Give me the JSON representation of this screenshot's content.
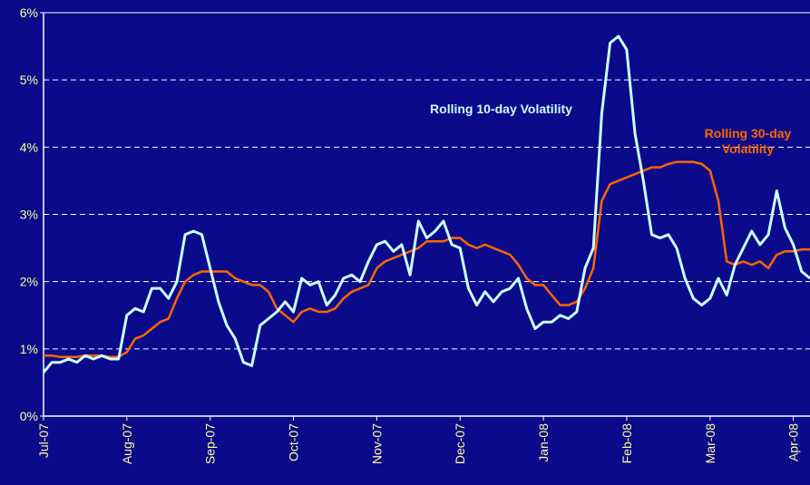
{
  "chart_data": {
    "type": "line",
    "categories": [
      "Jul-07",
      null,
      null,
      null,
      null,
      null,
      null,
      null,
      null,
      null,
      "Aug-07",
      null,
      null,
      null,
      null,
      null,
      null,
      null,
      null,
      null,
      "Sep-07",
      null,
      null,
      null,
      null,
      null,
      null,
      null,
      null,
      null,
      "Oct-07",
      null,
      null,
      null,
      null,
      null,
      null,
      null,
      null,
      null,
      "Nov-07",
      null,
      null,
      null,
      null,
      null,
      null,
      null,
      null,
      null,
      "Dec-07",
      null,
      null,
      null,
      null,
      null,
      null,
      null,
      null,
      null,
      "Jan-08",
      null,
      null,
      null,
      null,
      null,
      null,
      null,
      null,
      null,
      "Feb-08",
      null,
      null,
      null,
      null,
      null,
      null,
      null,
      null,
      null,
      "Mar-08",
      null,
      null,
      null,
      null,
      null,
      null,
      null,
      null,
      null,
      "Apr-08",
      null,
      null
    ],
    "series": [
      {
        "name": "Rolling 10-day Volatility",
        "color": "#ccffff",
        "values": [
          0.65,
          0.8,
          0.8,
          0.85,
          0.8,
          0.9,
          0.85,
          0.9,
          0.85,
          0.85,
          1.5,
          1.6,
          1.55,
          1.9,
          1.9,
          1.75,
          2.0,
          2.7,
          2.75,
          2.7,
          2.2,
          1.7,
          1.35,
          1.15,
          0.8,
          0.75,
          1.35,
          1.45,
          1.55,
          1.7,
          1.55,
          2.05,
          1.95,
          2.0,
          1.65,
          1.8,
          2.05,
          2.1,
          2.0,
          2.3,
          2.55,
          2.6,
          2.45,
          2.55,
          2.1,
          2.9,
          2.65,
          2.75,
          2.9,
          2.55,
          2.5,
          1.9,
          1.65,
          1.85,
          1.7,
          1.85,
          1.9,
          2.05,
          1.6,
          1.3,
          1.4,
          1.4,
          1.5,
          1.45,
          1.55,
          2.2,
          2.5,
          4.5,
          5.55,
          5.65,
          5.45,
          4.2,
          3.5,
          2.7,
          2.65,
          2.7,
          2.5,
          2.05,
          1.75,
          1.65,
          1.75,
          2.05,
          1.8,
          2.25,
          2.5,
          2.75,
          2.55,
          2.7,
          3.35,
          2.8,
          2.55,
          2.15,
          2.05
        ]
      },
      {
        "name": "Rolling 30-day Volatility",
        "color": "#ff6600",
        "values": [
          0.9,
          0.9,
          0.88,
          0.88,
          0.88,
          0.9,
          0.9,
          0.9,
          0.88,
          0.88,
          0.95,
          1.15,
          1.2,
          1.3,
          1.4,
          1.45,
          1.75,
          2.0,
          2.1,
          2.15,
          2.15,
          2.15,
          2.15,
          2.05,
          2.0,
          1.95,
          1.95,
          1.85,
          1.6,
          1.5,
          1.4,
          1.55,
          1.6,
          1.55,
          1.55,
          1.6,
          1.75,
          1.85,
          1.9,
          1.95,
          2.2,
          2.3,
          2.35,
          2.4,
          2.45,
          2.5,
          2.6,
          2.6,
          2.6,
          2.65,
          2.65,
          2.55,
          2.5,
          2.55,
          2.5,
          2.45,
          2.4,
          2.25,
          2.05,
          1.95,
          1.95,
          1.8,
          1.65,
          1.65,
          1.7,
          1.9,
          2.2,
          3.2,
          3.45,
          3.5,
          3.55,
          3.6,
          3.65,
          3.7,
          3.7,
          3.75,
          3.78,
          3.78,
          3.78,
          3.75,
          3.65,
          3.2,
          2.3,
          2.25,
          2.3,
          2.25,
          2.3,
          2.2,
          2.4,
          2.45,
          2.45,
          2.48,
          2.48
        ]
      }
    ],
    "ylim": [
      0,
      6
    ],
    "yticks": [
      {
        "value": 0,
        "label": "0%"
      },
      {
        "value": 1,
        "label": "1%"
      },
      {
        "value": 2,
        "label": "2%"
      },
      {
        "value": 3,
        "label": "3%"
      },
      {
        "value": 4,
        "label": "4%"
      },
      {
        "value": 5,
        "label": "5%"
      },
      {
        "value": 6,
        "label": "6%"
      }
    ],
    "grid": true
  }
}
